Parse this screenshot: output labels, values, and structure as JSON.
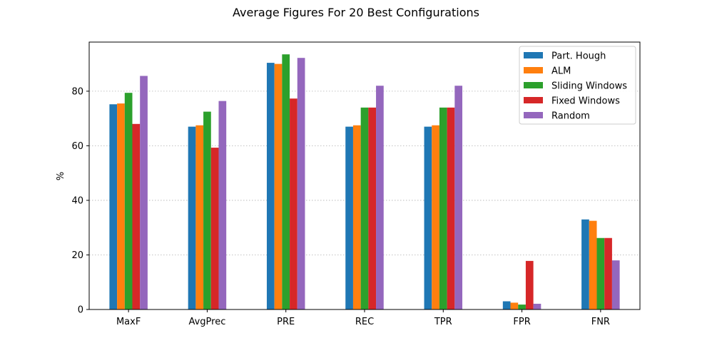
{
  "chart_data": {
    "type": "bar",
    "title": "Average Figures For 20 Best Configurations",
    "xlabel": "",
    "ylabel": "%",
    "ylim": [
      0,
      98
    ],
    "yticks": [
      0,
      20,
      40,
      60,
      80
    ],
    "grid": "y-dotted",
    "legend_position": "top-right",
    "categories": [
      "MaxF",
      "AvgPrec",
      "PRE",
      "REC",
      "TPR",
      "FPR",
      "FNR"
    ],
    "series": [
      {
        "name": "Part. Hough",
        "color": "#1f77b4",
        "values": [
          75.2,
          67.0,
          90.4,
          67.0,
          67.0,
          3.0,
          33.0
        ]
      },
      {
        "name": "ALM",
        "color": "#ff7f0e",
        "values": [
          75.5,
          67.5,
          90.0,
          67.5,
          67.5,
          2.5,
          32.5
        ]
      },
      {
        "name": "Sliding Windows",
        "color": "#2ca02c",
        "values": [
          79.4,
          72.5,
          93.5,
          74.0,
          74.0,
          1.8,
          26.2
        ]
      },
      {
        "name": "Fixed Windows",
        "color": "#d62728",
        "values": [
          68.0,
          59.3,
          77.3,
          74.0,
          74.0,
          17.8,
          26.2
        ]
      },
      {
        "name": "Random",
        "color": "#9467bd",
        "values": [
          85.6,
          76.4,
          92.2,
          82.0,
          82.0,
          2.1,
          18.0
        ]
      }
    ]
  }
}
